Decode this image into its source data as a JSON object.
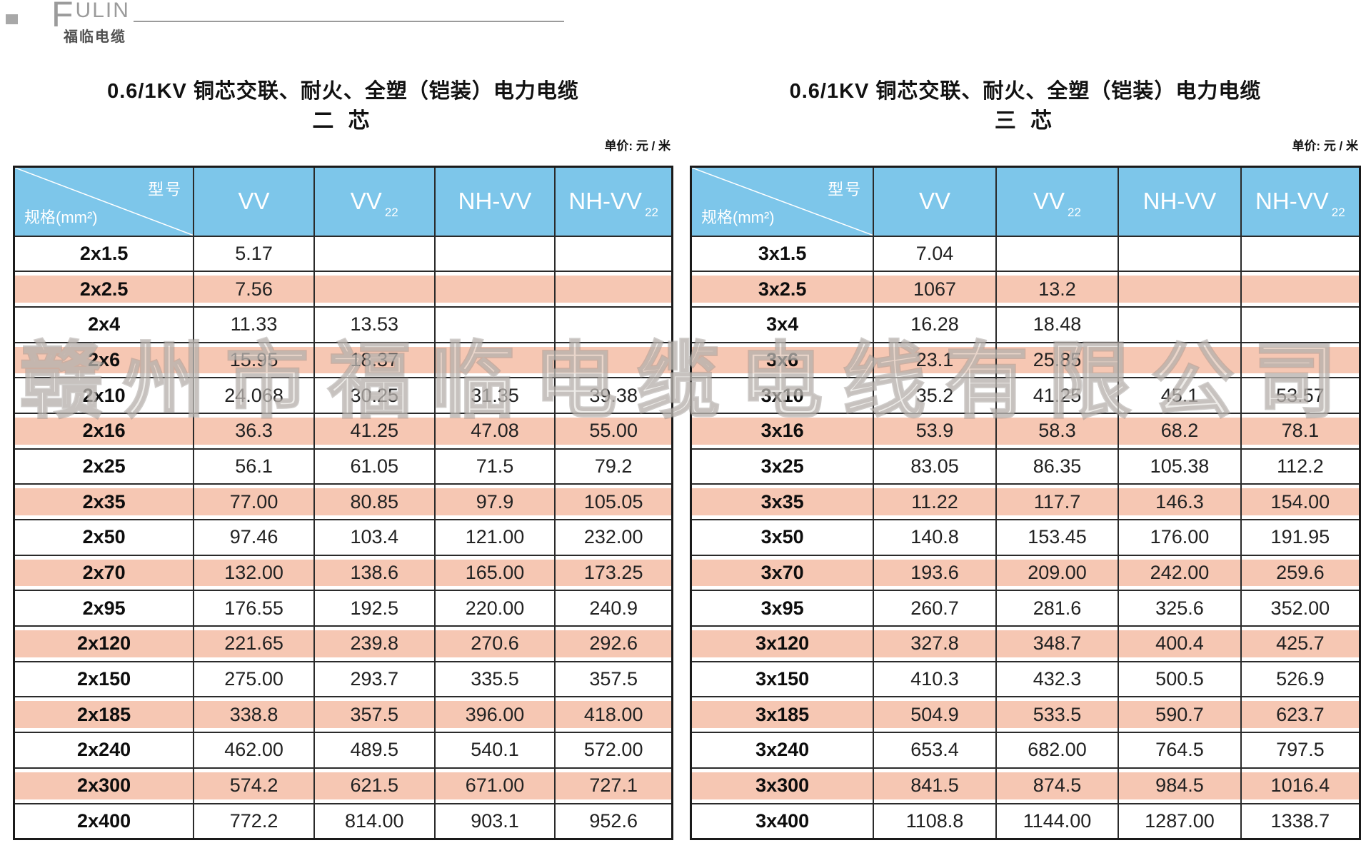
{
  "brand": {
    "logo_f": "F",
    "logo_rest": "ULIN",
    "logo_sub": "福临电缆"
  },
  "watermark": "赣州市福临电缆电线有限公司",
  "colors": {
    "header_blue": "#7dc6ea",
    "stripe_pink": "#f6c7b3",
    "border": "#2a2a2a",
    "logo_gray": "#9b9b9b"
  },
  "tables": [
    {
      "title": "0.6/1KV 铜芯交联、耐火、全塑（铠装）电力电缆",
      "subtitle": "二  芯",
      "unit_note": "单价:  元 / 米",
      "header": {
        "corner_top": "型号",
        "corner_bottom": "规格(mm²)",
        "columns": [
          {
            "base": "VV",
            "sub": ""
          },
          {
            "base": "VV",
            "sub": "22"
          },
          {
            "base": "NH-VV",
            "sub": ""
          },
          {
            "base": "NH-VV",
            "sub": "22"
          }
        ]
      },
      "rows": [
        {
          "spec": "2x1.5",
          "values": [
            "5.17",
            "",
            "",
            ""
          ]
        },
        {
          "spec": "2x2.5",
          "values": [
            "7.56",
            "",
            "",
            ""
          ]
        },
        {
          "spec": "2x4",
          "values": [
            "11.33",
            "13.53",
            "",
            ""
          ]
        },
        {
          "spec": "2x6",
          "values": [
            "15.95",
            "18.37",
            "",
            ""
          ]
        },
        {
          "spec": "2x10",
          "values": [
            "24.068",
            "30.25",
            "31.35",
            "39.38"
          ]
        },
        {
          "spec": "2x16",
          "values": [
            "36.3",
            "41.25",
            "47.08",
            "55.00"
          ]
        },
        {
          "spec": "2x25",
          "values": [
            "56.1",
            "61.05",
            "71.5",
            "79.2"
          ]
        },
        {
          "spec": "2x35",
          "values": [
            "77.00",
            "80.85",
            "97.9",
            "105.05"
          ]
        },
        {
          "spec": "2x50",
          "values": [
            "97.46",
            "103.4",
            "121.00",
            "232.00"
          ]
        },
        {
          "spec": "2x70",
          "values": [
            "132.00",
            "138.6",
            "165.00",
            "173.25"
          ]
        },
        {
          "spec": "2x95",
          "values": [
            "176.55",
            "192.5",
            "220.00",
            "240.9"
          ]
        },
        {
          "spec": "2x120",
          "values": [
            "221.65",
            "239.8",
            "270.6",
            "292.6"
          ]
        },
        {
          "spec": "2x150",
          "values": [
            "275.00",
            "293.7",
            "335.5",
            "357.5"
          ]
        },
        {
          "spec": "2x185",
          "values": [
            "338.8",
            "357.5",
            "396.00",
            "418.00"
          ]
        },
        {
          "spec": "2x240",
          "values": [
            "462.00",
            "489.5",
            "540.1",
            "572.00"
          ]
        },
        {
          "spec": "2x300",
          "values": [
            "574.2",
            "621.5",
            "671.00",
            "727.1"
          ]
        },
        {
          "spec": "2x400",
          "values": [
            "772.2",
            "814.00",
            "903.1",
            "952.6"
          ]
        }
      ]
    },
    {
      "title": "0.6/1KV 铜芯交联、耐火、全塑（铠装）电力电缆",
      "subtitle": "三  芯",
      "unit_note": "单价:  元 / 米",
      "header": {
        "corner_top": "型号",
        "corner_bottom": "规格(mm²)",
        "columns": [
          {
            "base": "VV",
            "sub": ""
          },
          {
            "base": "VV",
            "sub": "22"
          },
          {
            "base": "NH-VV",
            "sub": ""
          },
          {
            "base": "NH-VV",
            "sub": "22"
          }
        ]
      },
      "rows": [
        {
          "spec": "3x1.5",
          "values": [
            "7.04",
            "",
            "",
            ""
          ]
        },
        {
          "spec": "3x2.5",
          "values": [
            "1067",
            "13.2",
            "",
            ""
          ]
        },
        {
          "spec": "3x4",
          "values": [
            "16.28",
            "18.48",
            "",
            ""
          ]
        },
        {
          "spec": "3x6",
          "values": [
            "23.1",
            "25.85",
            "",
            ""
          ]
        },
        {
          "spec": "3x10",
          "values": [
            "35.2",
            "41.25",
            "45.1",
            "53.57"
          ]
        },
        {
          "spec": "3x16",
          "values": [
            "53.9",
            "58.3",
            "68.2",
            "78.1"
          ]
        },
        {
          "spec": "3x25",
          "values": [
            "83.05",
            "86.35",
            "105.38",
            "112.2"
          ]
        },
        {
          "spec": "3x35",
          "values": [
            "11.22",
            "117.7",
            "146.3",
            "154.00"
          ]
        },
        {
          "spec": "3x50",
          "values": [
            "140.8",
            "153.45",
            "176.00",
            "191.95"
          ]
        },
        {
          "spec": "3x70",
          "values": [
            "193.6",
            "209.00",
            "242.00",
            "259.6"
          ]
        },
        {
          "spec": "3x95",
          "values": [
            "260.7",
            "281.6",
            "325.6",
            "352.00"
          ]
        },
        {
          "spec": "3x120",
          "values": [
            "327.8",
            "348.7",
            "400.4",
            "425.7"
          ]
        },
        {
          "spec": "3x150",
          "values": [
            "410.3",
            "432.3",
            "500.5",
            "526.9"
          ]
        },
        {
          "spec": "3x185",
          "values": [
            "504.9",
            "533.5",
            "590.7",
            "623.7"
          ]
        },
        {
          "spec": "3x240",
          "values": [
            "653.4",
            "682.00",
            "764.5",
            "797.5"
          ]
        },
        {
          "spec": "3x300",
          "values": [
            "841.5",
            "874.5",
            "984.5",
            "1016.4"
          ]
        },
        {
          "spec": "3x400",
          "values": [
            "1108.8",
            "1144.00",
            "1287.00",
            "1338.7"
          ]
        }
      ]
    }
  ]
}
